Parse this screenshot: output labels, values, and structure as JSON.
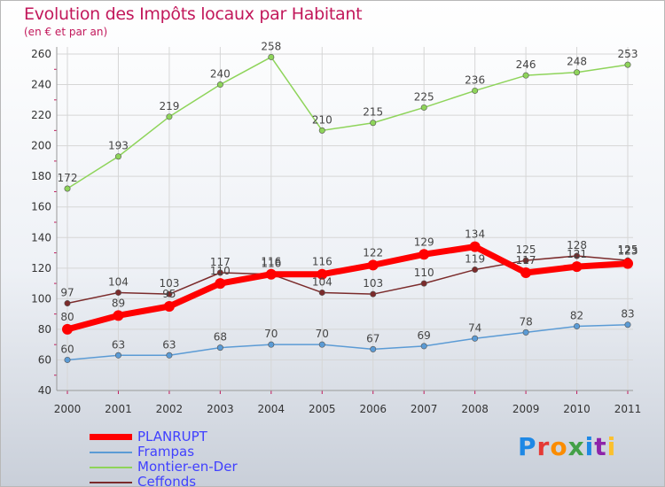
{
  "title": "Evolution des Impôts locaux par Habitant",
  "subtitle": "(en € et par an)",
  "logo": {
    "letters": [
      {
        "ch": "P",
        "color": "#1e88e5"
      },
      {
        "ch": "r",
        "color": "#e53935"
      },
      {
        "ch": "o",
        "color": "#fb8c00"
      },
      {
        "ch": "x",
        "color": "#43a047"
      },
      {
        "ch": "i",
        "color": "#1e88e5"
      },
      {
        "ch": "t",
        "color": "#8e24aa"
      },
      {
        "ch": "i",
        "color": "#fbc02d"
      }
    ]
  },
  "chart_data": {
    "type": "line",
    "title": "Evolution des Impôts locaux par Habitant",
    "subtitle": "(en € et par an)",
    "categories": [
      "2000",
      "2001",
      "2002",
      "2003",
      "2004",
      "2005",
      "2006",
      "2007",
      "2008",
      "2009",
      "2010",
      "2011"
    ],
    "ylim": [
      40,
      260
    ],
    "yticks": [
      40,
      60,
      80,
      100,
      120,
      140,
      160,
      180,
      200,
      220,
      240,
      260
    ],
    "grid": true,
    "legend_placement": "bottom-left",
    "series": [
      {
        "name": "Montier-en-Der",
        "color": "#8ed45a",
        "values": [
          172,
          193,
          219,
          240,
          258,
          210,
          215,
          225,
          236,
          246,
          248,
          253
        ],
        "labels": [
          "172",
          "193",
          "219",
          "240",
          "258",
          "210",
          "215",
          "225",
          "236",
          "246",
          "248",
          "253"
        ]
      },
      {
        "name": "Ceffonds",
        "color": "#7b2b2b",
        "values": [
          97,
          104,
          103,
          117,
          116,
          104,
          103,
          110,
          119,
          125,
          128,
          125
        ],
        "labels": [
          "97",
          "104",
          "103",
          "117",
          "116",
          "104",
          "103",
          "110",
          "119",
          "125",
          "128",
          "125"
        ]
      },
      {
        "name": "Frampas",
        "color": "#5b9bd5",
        "values": [
          60,
          63,
          63,
          68,
          70,
          70,
          67,
          69,
          74,
          78,
          82,
          83
        ],
        "labels": [
          "60",
          "63",
          "63",
          "68",
          "70",
          "70",
          "67",
          "69",
          "74",
          "78",
          "82",
          "83"
        ]
      },
      {
        "name": "PLANRUPT",
        "color": "#ff0000",
        "values": [
          80,
          89,
          95,
          110,
          116,
          116,
          122,
          129,
          134,
          117,
          121,
          123
        ],
        "labels": [
          "80",
          "89",
          "95",
          "110",
          "116",
          "116",
          "122",
          "129",
          "134",
          "117",
          "121",
          "123"
        ]
      }
    ],
    "legend": [
      {
        "name": "PLANRUPT",
        "color": "#ff0000"
      },
      {
        "name": "Frampas",
        "color": "#5b9bd5"
      },
      {
        "name": "Montier-en-Der",
        "color": "#8ed45a"
      },
      {
        "name": "Ceffonds",
        "color": "#7b2b2b"
      }
    ]
  }
}
